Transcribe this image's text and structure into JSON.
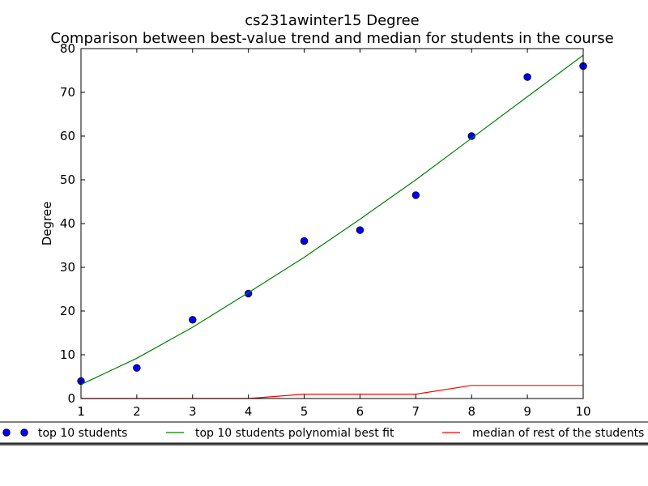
{
  "chart_data": {
    "type": "line",
    "title": "cs231awinter15 Degree",
    "subtitle": "Comparison between best-value trend and median for students in the course",
    "xlabel": "",
    "ylabel": "Degree",
    "xlim": [
      1,
      10
    ],
    "ylim": [
      0,
      80
    ],
    "x_ticks": [
      "1",
      "2",
      "3",
      "4",
      "5",
      "6",
      "7",
      "8",
      "9",
      "10"
    ],
    "y_ticks": [
      "0",
      "10",
      "20",
      "30",
      "40",
      "50",
      "60",
      "70",
      "80"
    ],
    "grid": false,
    "legend_placement": "bottom",
    "series": [
      {
        "name": "top 10 students",
        "style": "scatter",
        "color": "#0000ff",
        "x": [
          1,
          2,
          3,
          4,
          5,
          6,
          7,
          8,
          9,
          10
        ],
        "values": [
          4,
          7,
          18,
          24,
          36,
          38.5,
          46.5,
          60,
          73.5,
          76
        ]
      },
      {
        "name": "top 10 students polynomial best fit",
        "style": "line",
        "color": "#008000",
        "x": [
          1,
          2,
          3,
          4,
          5,
          6,
          7,
          8,
          9,
          10
        ],
        "values": [
          3.2,
          9.2,
          16.3,
          24.2,
          32.3,
          41,
          50,
          59.5,
          69,
          78.5
        ]
      },
      {
        "name": "median of rest of the students",
        "style": "line",
        "color": "#ff0000",
        "x": [
          1,
          2,
          3,
          4,
          5,
          6,
          7,
          8,
          9,
          10
        ],
        "values": [
          0,
          0,
          0,
          0,
          1,
          1,
          1,
          3,
          3,
          3
        ]
      }
    ]
  }
}
